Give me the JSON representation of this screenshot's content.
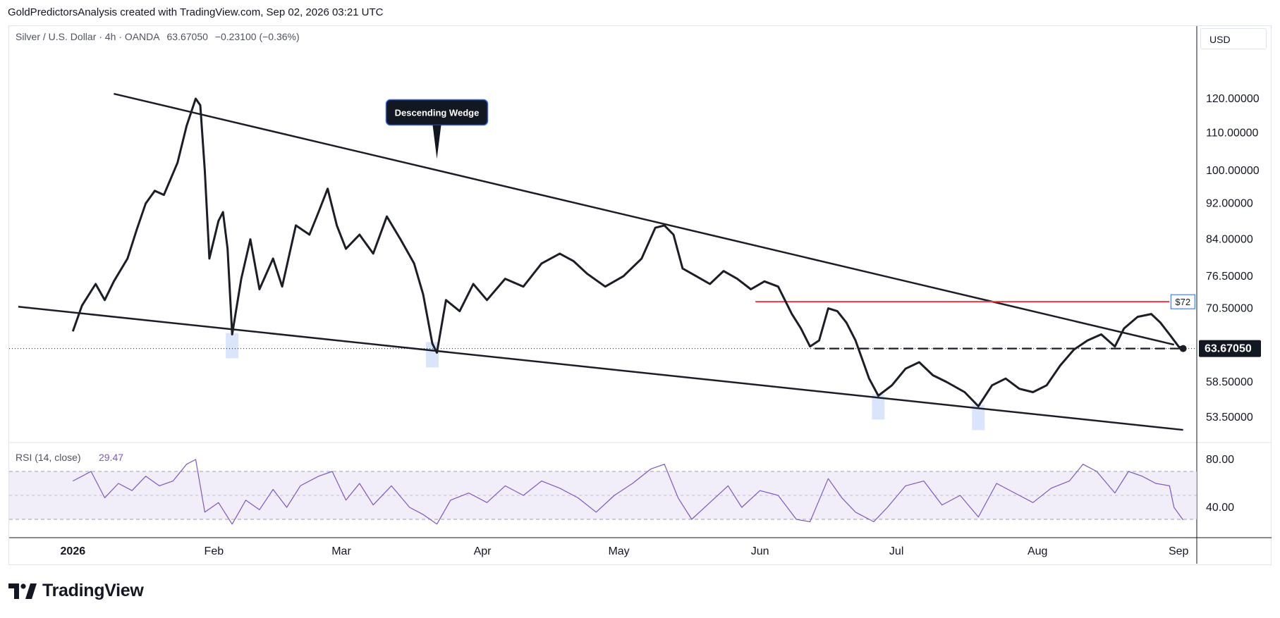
{
  "header": {
    "credit": "GoldPredictorsAnalysis created with TradingView.com, Sep 02, 2026 03:21 UTC"
  },
  "legend": {
    "symbol": "Silver / U.S. Dollar · 4h · OANDA",
    "last": "63.67050",
    "change": "−0.23100 (−0.36%)"
  },
  "currency": "USD",
  "footer": {
    "brand": "TradingView"
  },
  "colors": {
    "price_line": "#1b1e26",
    "resistance_line": "#f23645",
    "rsi_line": "#7e57c2",
    "rsi_band": "#ede7f6",
    "highlight": "#d3e0fb"
  },
  "chart_data": [
    {
      "type": "line",
      "series": [
        {
          "name": "",
          "points": [
            [
              "2026-01-01",
              66.5
            ],
            [
              "2026-01-03",
              71.0
            ],
            [
              "2026-01-06",
              75.0
            ],
            [
              "2026-01-08",
              72.0
            ],
            [
              "2026-01-10",
              75.5
            ],
            [
              "2026-01-13",
              80.0
            ],
            [
              "2026-01-15",
              86.0
            ],
            [
              "2026-01-17",
              92.0
            ],
            [
              "2026-01-19",
              95.0
            ],
            [
              "2026-01-21",
              94.0
            ],
            [
              "2026-01-24",
              102.0
            ],
            [
              "2026-01-26",
              112.0
            ],
            [
              "2026-01-28",
              120.0
            ],
            [
              "2026-01-29",
              118.0
            ],
            [
              "2026-01-30",
              100.0
            ],
            [
              "2026-01-31",
              80.0
            ],
            [
              "2026-02-02",
              88.0
            ],
            [
              "2026-02-03",
              90.0
            ],
            [
              "2026-02-04",
              82.0
            ],
            [
              "2026-02-05",
              66.0
            ],
            [
              "2026-02-07",
              76.0
            ],
            [
              "2026-02-09",
              84.0
            ],
            [
              "2026-02-11",
              74.0
            ],
            [
              "2026-02-14",
              80.0
            ],
            [
              "2026-02-16",
              74.5
            ],
            [
              "2026-02-19",
              87.0
            ],
            [
              "2026-02-22",
              85.0
            ],
            [
              "2026-02-24",
              90.0
            ],
            [
              "2026-02-26",
              95.5
            ],
            [
              "2026-02-28",
              87.0
            ],
            [
              "2026-03-02",
              82.0
            ],
            [
              "2026-03-05",
              85.0
            ],
            [
              "2026-03-08",
              81.0
            ],
            [
              "2026-03-11",
              89.0
            ],
            [
              "2026-03-14",
              84.0
            ],
            [
              "2026-03-17",
              79.0
            ],
            [
              "2026-03-19",
              73.0
            ],
            [
              "2026-03-21",
              64.5
            ],
            [
              "2026-03-22",
              63.0
            ],
            [
              "2026-03-24",
              72.0
            ],
            [
              "2026-03-27",
              70.0
            ],
            [
              "2026-03-30",
              75.0
            ],
            [
              "2026-04-02",
              72.0
            ],
            [
              "2026-04-06",
              76.0
            ],
            [
              "2026-04-10",
              74.5
            ],
            [
              "2026-04-14",
              79.0
            ],
            [
              "2026-04-18",
              81.0
            ],
            [
              "2026-04-21",
              79.5
            ],
            [
              "2026-04-24",
              77.0
            ],
            [
              "2026-04-28",
              74.5
            ],
            [
              "2026-05-02",
              76.5
            ],
            [
              "2026-05-06",
              80.0
            ],
            [
              "2026-05-09",
              86.5
            ],
            [
              "2026-05-11",
              87.0
            ],
            [
              "2026-05-13",
              85.0
            ],
            [
              "2026-05-15",
              78.0
            ],
            [
              "2026-05-18",
              76.5
            ],
            [
              "2026-05-21",
              75.0
            ],
            [
              "2026-05-24",
              77.5
            ],
            [
              "2026-05-27",
              76.0
            ],
            [
              "2026-05-30",
              74.0
            ],
            [
              "2026-06-02",
              75.5
            ],
            [
              "2026-06-05",
              74.5
            ],
            [
              "2026-06-08",
              69.5
            ],
            [
              "2026-06-10",
              67.0
            ],
            [
              "2026-06-12",
              64.0
            ],
            [
              "2026-06-14",
              65.0
            ],
            [
              "2026-06-16",
              70.5
            ],
            [
              "2026-06-18",
              70.0
            ],
            [
              "2026-06-20",
              68.0
            ],
            [
              "2026-06-22",
              65.0
            ],
            [
              "2026-06-25",
              59.0
            ],
            [
              "2026-06-27",
              56.5
            ],
            [
              "2026-06-30",
              58.0
            ],
            [
              "2026-07-03",
              60.5
            ],
            [
              "2026-07-06",
              61.5
            ],
            [
              "2026-07-09",
              59.5
            ],
            [
              "2026-07-12",
              58.5
            ],
            [
              "2026-07-16",
              57.0
            ],
            [
              "2026-07-19",
              55.0
            ],
            [
              "2026-07-22",
              58.0
            ],
            [
              "2026-07-25",
              59.0
            ],
            [
              "2026-07-28",
              57.5
            ],
            [
              "2026-07-31",
              57.0
            ],
            [
              "2026-08-03",
              58.0
            ],
            [
              "2026-08-06",
              61.0
            ],
            [
              "2026-08-09",
              63.5
            ],
            [
              "2026-08-12",
              65.0
            ],
            [
              "2026-08-15",
              66.0
            ],
            [
              "2026-08-18",
              64.0
            ],
            [
              "2026-08-20",
              67.0
            ],
            [
              "2026-08-23",
              69.0
            ],
            [
              "2026-08-26",
              69.5
            ],
            [
              "2026-08-28",
              68.0
            ],
            [
              "2026-08-30",
              66.0
            ],
            [
              "2026-09-01",
              64.0
            ],
            [
              "2026-09-02",
              63.6705
            ]
          ]
        }
      ],
      "current_price": {
        "value": 63.6705,
        "label": "63.67050"
      },
      "trendlines": [
        {
          "name": "upper",
          "from": [
            "2026-01-10",
            121.5
          ],
          "to": [
            "2026-08-31",
            64.3
          ]
        },
        {
          "name": "lower",
          "from": [
            "2025-12-20",
            70.8
          ],
          "to": [
            "2026-09-02",
            51.8
          ]
        }
      ],
      "horizontal_lines": [
        {
          "name": "resistance",
          "value": 71.7,
          "from": "2026-05-31",
          "to": "2026-08-30",
          "label": "$72",
          "style": "solid"
        },
        {
          "name": "support",
          "value": 63.6705,
          "from": "2026-06-13",
          "to": "2026-09-02",
          "style": "dashed"
        }
      ],
      "highlights": [
        "2026-02-05",
        "2026-03-21",
        "2026-06-27",
        "2026-07-19"
      ],
      "annotations": [
        {
          "text": "Descending Wedge",
          "date": "2026-03-22",
          "value": 103.0
        }
      ],
      "y_scale": "log",
      "ylim": [
        50,
        132
      ],
      "y_ticks": [
        {
          "value": 120.0,
          "label": "120.00000"
        },
        {
          "value": 110.0,
          "label": "110.00000"
        },
        {
          "value": 100.0,
          "label": "100.00000"
        },
        {
          "value": 92.0,
          "label": "92.00000"
        },
        {
          "value": 84.0,
          "label": "84.00000"
        },
        {
          "value": 76.5,
          "label": "76.50000"
        },
        {
          "value": 70.5,
          "label": "70.50000"
        },
        {
          "value": 58.5,
          "label": "58.50000"
        },
        {
          "value": 53.5,
          "label": "53.50000"
        }
      ],
      "x_range": [
        "2025-12-18",
        "2026-09-05"
      ],
      "x_ticks": [
        {
          "date": "2026-01-01",
          "label": "2026",
          "bold": true
        },
        {
          "date": "2026-02-01",
          "label": "Feb"
        },
        {
          "date": "2026-03-01",
          "label": "Mar"
        },
        {
          "date": "2026-04-01",
          "label": "Apr"
        },
        {
          "date": "2026-05-01",
          "label": "May"
        },
        {
          "date": "2026-06-01",
          "label": "Jun"
        },
        {
          "date": "2026-07-01",
          "label": "Jul"
        },
        {
          "date": "2026-08-01",
          "label": "Aug"
        },
        {
          "date": "2026-09-01",
          "label": "Sep"
        }
      ],
      "grid": false
    },
    {
      "type": "line",
      "title": "RSI (14, close)",
      "value_label": "29.47",
      "series": [
        {
          "name": "",
          "points": [
            [
              "2026-01-01",
              62
            ],
            [
              "2026-01-05",
              70
            ],
            [
              "2026-01-08",
              48
            ],
            [
              "2026-01-11",
              60
            ],
            [
              "2026-01-14",
              54
            ],
            [
              "2026-01-17",
              66
            ],
            [
              "2026-01-20",
              58
            ],
            [
              "2026-01-23",
              62
            ],
            [
              "2026-01-26",
              76
            ],
            [
              "2026-01-28",
              80
            ],
            [
              "2026-01-30",
              36
            ],
            [
              "2026-02-02",
              44
            ],
            [
              "2026-02-05",
              26
            ],
            [
              "2026-02-08",
              46
            ],
            [
              "2026-02-11",
              38
            ],
            [
              "2026-02-14",
              55
            ],
            [
              "2026-02-17",
              40
            ],
            [
              "2026-02-20",
              58
            ],
            [
              "2026-02-24",
              66
            ],
            [
              "2026-02-27",
              70
            ],
            [
              "2026-03-02",
              46
            ],
            [
              "2026-03-05",
              60
            ],
            [
              "2026-03-08",
              42
            ],
            [
              "2026-03-12",
              58
            ],
            [
              "2026-03-16",
              40
            ],
            [
              "2026-03-19",
              34
            ],
            [
              "2026-03-22",
              26
            ],
            [
              "2026-03-25",
              46
            ],
            [
              "2026-03-29",
              52
            ],
            [
              "2026-04-02",
              44
            ],
            [
              "2026-04-06",
              58
            ],
            [
              "2026-04-10",
              50
            ],
            [
              "2026-04-14",
              62
            ],
            [
              "2026-04-18",
              56
            ],
            [
              "2026-04-22",
              48
            ],
            [
              "2026-04-26",
              36
            ],
            [
              "2026-04-30",
              50
            ],
            [
              "2026-05-04",
              60
            ],
            [
              "2026-05-08",
              72
            ],
            [
              "2026-05-11",
              76
            ],
            [
              "2026-05-14",
              48
            ],
            [
              "2026-05-17",
              30
            ],
            [
              "2026-05-21",
              44
            ],
            [
              "2026-05-25",
              58
            ],
            [
              "2026-05-28",
              40
            ],
            [
              "2026-06-01",
              54
            ],
            [
              "2026-06-05",
              50
            ],
            [
              "2026-06-09",
              30
            ],
            [
              "2026-06-12",
              28
            ],
            [
              "2026-06-16",
              64
            ],
            [
              "2026-06-19",
              48
            ],
            [
              "2026-06-22",
              36
            ],
            [
              "2026-06-26",
              28
            ],
            [
              "2026-06-29",
              40
            ],
            [
              "2026-07-03",
              58
            ],
            [
              "2026-07-07",
              62
            ],
            [
              "2026-07-11",
              42
            ],
            [
              "2026-07-15",
              50
            ],
            [
              "2026-07-19",
              32
            ],
            [
              "2026-07-23",
              60
            ],
            [
              "2026-07-27",
              52
            ],
            [
              "2026-07-31",
              44
            ],
            [
              "2026-08-04",
              56
            ],
            [
              "2026-08-08",
              62
            ],
            [
              "2026-08-11",
              76
            ],
            [
              "2026-08-14",
              70
            ],
            [
              "2026-08-18",
              52
            ],
            [
              "2026-08-21",
              70
            ],
            [
              "2026-08-24",
              66
            ],
            [
              "2026-08-27",
              60
            ],
            [
              "2026-08-30",
              58
            ],
            [
              "2026-08-31",
              40
            ],
            [
              "2026-09-02",
              29.47
            ]
          ]
        }
      ],
      "levels": [
        70,
        50,
        30
      ],
      "ylim": [
        20,
        90
      ],
      "y_ticks": [
        {
          "value": 80,
          "label": "80.00"
        },
        {
          "value": 40,
          "label": "40.00"
        }
      ]
    }
  ]
}
